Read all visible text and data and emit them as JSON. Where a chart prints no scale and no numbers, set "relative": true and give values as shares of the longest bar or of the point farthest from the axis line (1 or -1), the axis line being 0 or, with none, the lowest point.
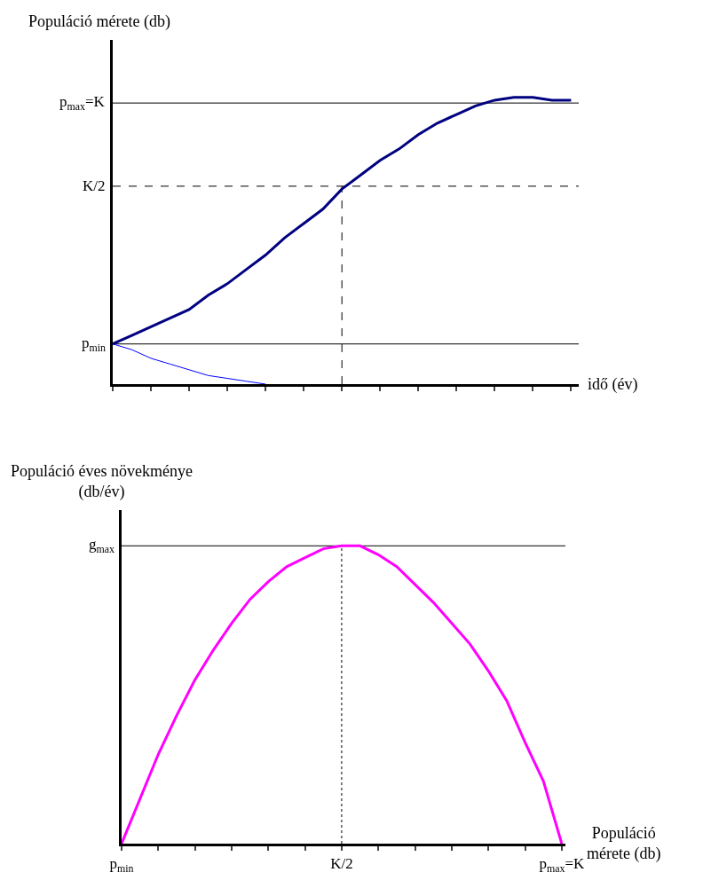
{
  "chart_data": [
    {
      "type": "line",
      "relative": true,
      "ylabel": "Populáció mérete (db)",
      "xlabel": "idő (év)",
      "categories": [
        null,
        null,
        null,
        null,
        null,
        null,
        null,
        null,
        null,
        null,
        null,
        null,
        null,
        null,
        null,
        null,
        null,
        null,
        null,
        null,
        null,
        null,
        null,
        null,
        null
      ],
      "series": [
        {
          "color": "#000080",
          "values": [
            0.14,
            0.17,
            0.2,
            0.23,
            0.26,
            0.31,
            0.35,
            0.4,
            0.45,
            0.51,
            0.56,
            0.61,
            0.68,
            0.73,
            0.78,
            0.82,
            0.87,
            0.91,
            0.94,
            0.97,
            0.99,
            1,
            1,
            0.99,
            0.99
          ]
        },
        {
          "color": "#0000ff",
          "values": [
            0.14,
            0.12,
            0.09,
            0.07,
            0.05,
            0.03,
            0.02,
            0.01,
            0,
            null,
            null,
            null,
            null,
            null,
            null,
            null,
            null,
            null,
            null,
            null,
            null,
            null,
            null,
            null,
            null
          ]
        }
      ],
      "ref_lines": [
        {
          "axis": "y",
          "value": 0.98,
          "label": "p$_{max}$=K",
          "line_style": "solid",
          "color": "#000000"
        },
        {
          "axis": "y",
          "value": 0.69,
          "label": "K/2",
          "line_style": "dashed",
          "color": "#000000"
        },
        {
          "axis": "y",
          "value": 0.14,
          "label": "p$_{min}$",
          "line_style": "solid",
          "color": "#000000"
        }
      ],
      "grid": false,
      "marker": "none",
      "line_style": "solid"
    },
    {
      "type": "line",
      "relative": true,
      "ylabel": "Populáció éves növekménye\n(db/év)",
      "xlabel": "Populáció\nmérete (db)",
      "categories": [
        "p$_{min}$",
        null,
        null,
        null,
        null,
        null,
        null,
        null,
        null,
        null,
        null,
        null,
        "K/2",
        null,
        null,
        null,
        null,
        null,
        null,
        null,
        null,
        null,
        null,
        null,
        "p$_{max}$=K"
      ],
      "series": [
        {
          "color": "#ff00ff",
          "values": [
            0,
            0.15,
            0.3,
            0.43,
            0.55,
            0.65,
            0.74,
            0.82,
            0.88,
            0.93,
            0.96,
            0.99,
            1,
            1,
            0.97,
            0.93,
            0.87,
            0.81,
            0.74,
            0.67,
            0.58,
            0.48,
            0.34,
            0.21,
            0
          ]
        }
      ],
      "ref_lines": [
        {
          "axis": "y",
          "value": 1,
          "label": "g$_{max}$",
          "line_style": "solid",
          "color": "#000000"
        },
        {
          "axis": "x",
          "value": "K/2",
          "line_style": "dotted",
          "color": "#000000"
        }
      ],
      "grid": false,
      "marker": "none",
      "line_style": "solid"
    }
  ]
}
